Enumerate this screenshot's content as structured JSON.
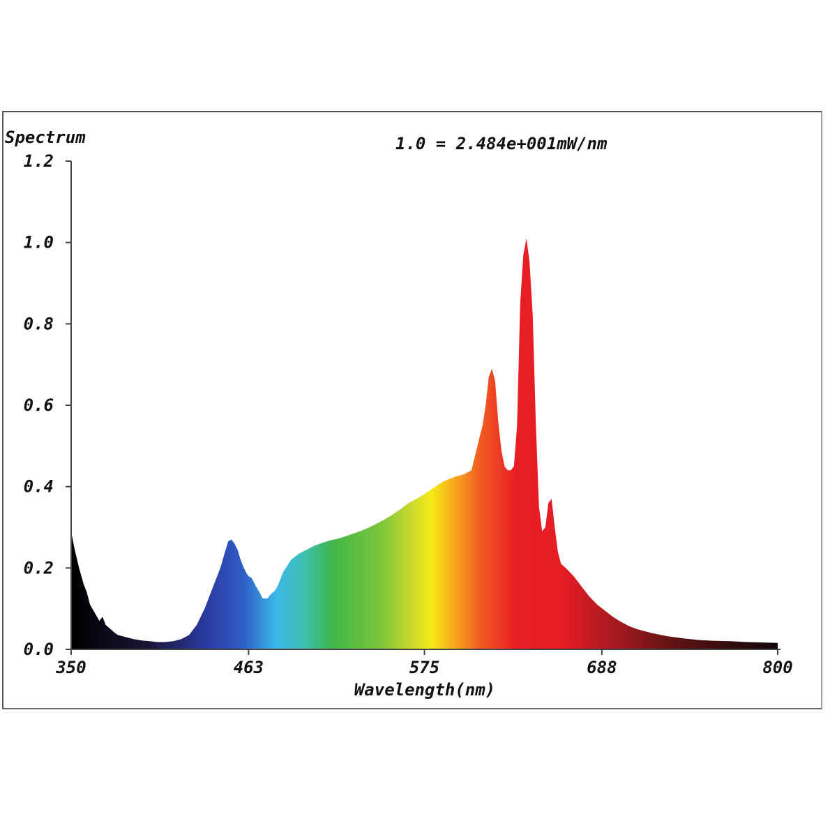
{
  "chart_data": {
    "type": "area",
    "title": "Spectrum",
    "annotation": "1.0 = 2.484e+001mW/nm",
    "xlabel": "Wavelength(nm)",
    "ylabel": "",
    "xlim": [
      350,
      800
    ],
    "ylim": [
      0,
      1.2
    ],
    "x_ticks": [
      350,
      463,
      575,
      688,
      800
    ],
    "x_tick_labels": [
      "350",
      "463",
      "575",
      "688",
      "800"
    ],
    "y_ticks": [
      0.0,
      0.2,
      0.4,
      0.6,
      0.8,
      1.0,
      1.2
    ],
    "y_tick_labels": [
      "0.0",
      "0.2",
      "0.4",
      "0.6",
      "0.8",
      "1.0",
      "1.2"
    ],
    "grid": false,
    "fill": "wavelength-colored spectrum gradient",
    "series": [
      {
        "x": [
          350,
          352,
          355,
          358,
          360,
          362,
          365,
          368,
          370,
          372,
          375,
          378,
          380,
          385,
          390,
          395,
          400,
          405,
          410,
          415,
          420,
          425,
          430,
          435,
          440,
          445,
          448,
          450,
          452,
          454,
          456,
          458,
          460,
          462,
          463,
          465,
          467,
          470,
          472,
          475,
          477,
          480,
          482,
          485,
          490,
          495,
          500,
          505,
          510,
          515,
          520,
          525,
          530,
          535,
          540,
          545,
          550,
          555,
          560,
          565,
          570,
          575,
          580,
          585,
          590,
          595,
          600,
          605,
          610,
          612,
          614,
          616,
          618,
          620,
          622,
          624,
          626,
          628,
          630,
          632,
          634,
          636,
          638,
          640,
          642,
          644,
          646,
          648,
          650,
          652,
          654,
          656,
          658,
          660,
          662,
          665,
          670,
          675,
          680,
          685,
          690,
          695,
          700,
          705,
          710,
          720,
          730,
          740,
          750,
          760,
          770,
          780,
          790,
          800
        ],
        "y": [
          0.29,
          0.25,
          0.2,
          0.16,
          0.14,
          0.11,
          0.09,
          0.07,
          0.08,
          0.06,
          0.05,
          0.04,
          0.035,
          0.03,
          0.025,
          0.022,
          0.02,
          0.018,
          0.018,
          0.02,
          0.025,
          0.035,
          0.06,
          0.1,
          0.15,
          0.2,
          0.24,
          0.265,
          0.27,
          0.26,
          0.245,
          0.22,
          0.2,
          0.185,
          0.18,
          0.175,
          0.16,
          0.14,
          0.125,
          0.125,
          0.135,
          0.145,
          0.16,
          0.19,
          0.22,
          0.235,
          0.245,
          0.255,
          0.262,
          0.268,
          0.272,
          0.278,
          0.285,
          0.292,
          0.3,
          0.31,
          0.32,
          0.332,
          0.345,
          0.36,
          0.37,
          0.382,
          0.395,
          0.408,
          0.418,
          0.425,
          0.43,
          0.44,
          0.52,
          0.55,
          0.6,
          0.67,
          0.69,
          0.66,
          0.56,
          0.49,
          0.45,
          0.44,
          0.44,
          0.45,
          0.55,
          0.85,
          0.97,
          1.01,
          0.95,
          0.82,
          0.55,
          0.35,
          0.29,
          0.3,
          0.36,
          0.37,
          0.3,
          0.24,
          0.21,
          0.2,
          0.18,
          0.155,
          0.13,
          0.11,
          0.095,
          0.08,
          0.068,
          0.058,
          0.05,
          0.04,
          0.032,
          0.027,
          0.023,
          0.021,
          0.02,
          0.018,
          0.017,
          0.016
        ]
      }
    ]
  }
}
